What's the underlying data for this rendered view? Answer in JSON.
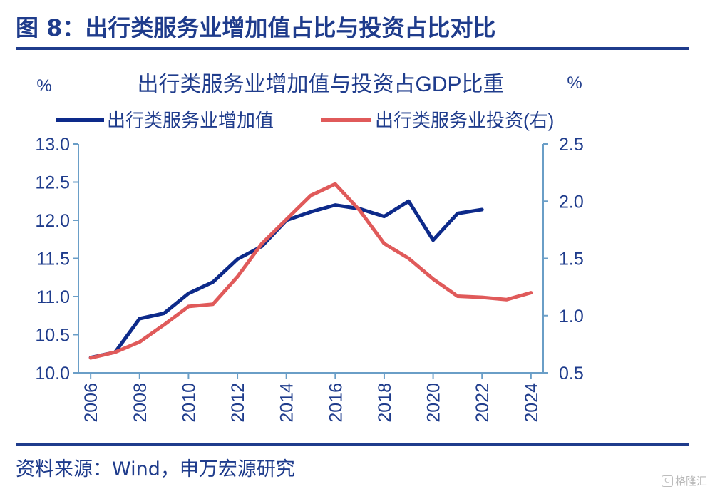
{
  "figure": {
    "title": "图 8：出行类服务业增加值占比与投资占比对比",
    "source": "资料来源：Wind，申万宏源研究",
    "watermark": "格隆汇"
  },
  "colors": {
    "accent": "#1f3c8c",
    "axis": "#6a9ec7"
  },
  "chart_data": {
    "type": "line",
    "title": "出行类服务业增加值与投资占GDP比重",
    "y_unit_left": "%",
    "y_unit_right": "%",
    "x_ticks": [
      2006,
      2008,
      2010,
      2012,
      2014,
      2016,
      2018,
      2020,
      2022,
      2024
    ],
    "x_range": [
      2005.5,
      2024.5
    ],
    "ylim_left": [
      10.0,
      13.0
    ],
    "yticks_left": [
      "10.0",
      "10.5",
      "11.0",
      "11.5",
      "12.0",
      "12.5",
      "13.0"
    ],
    "ylim_right": [
      0.5,
      2.5
    ],
    "yticks_right": [
      "0.5",
      "1.0",
      "1.5",
      "2.0",
      "2.5"
    ],
    "legend_position": "top",
    "grid": false,
    "series": [
      {
        "name": "出行类服务业增加值",
        "axis": "left",
        "color": "#0d2a8a",
        "x": [
          2006,
          2007,
          2008,
          2009,
          2010,
          2011,
          2012,
          2013,
          2014,
          2015,
          2016,
          2017,
          2018,
          2019,
          2020,
          2021,
          2022
        ],
        "values": [
          10.2,
          10.27,
          10.71,
          10.78,
          11.04,
          11.19,
          11.49,
          11.66,
          12.0,
          12.11,
          12.2,
          12.15,
          12.05,
          12.25,
          11.74,
          12.09,
          12.14
        ]
      },
      {
        "name": "出行类服务业投资(右)",
        "axis": "right",
        "color": "#e05a5a",
        "x": [
          2006,
          2007,
          2008,
          2009,
          2010,
          2011,
          2012,
          2013,
          2014,
          2015,
          2016,
          2017,
          2018,
          2019,
          2020,
          2021,
          2022,
          2023,
          2024
        ],
        "values": [
          0.63,
          0.68,
          0.77,
          0.92,
          1.08,
          1.1,
          1.34,
          1.63,
          1.84,
          2.05,
          2.15,
          1.92,
          1.63,
          1.5,
          1.32,
          1.17,
          1.16,
          1.14,
          1.2
        ]
      }
    ]
  }
}
